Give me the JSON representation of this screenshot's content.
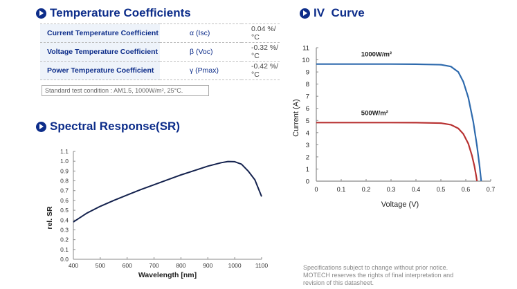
{
  "temperature_section": {
    "title": "Temperature Coefficients",
    "rows": [
      {
        "name": "Current Temperature Coefficient",
        "symbol": "α (Isc)",
        "value": "0.04 %/°C"
      },
      {
        "name": "Voltage Temperature Coefficient",
        "symbol": "β (Voc)",
        "value": "-0.32 %/°C"
      },
      {
        "name": "Power Temperature Coefficient",
        "symbol": "γ (Pmax)",
        "value": "-0.42 %/°C"
      }
    ],
    "standard_condition": "Standard test condition : AM1.5, 1000W/m², 25°C."
  },
  "spectral_section": {
    "title": "Spectral Response(SR)"
  },
  "iv_section": {
    "title": "IV  Curve"
  },
  "footnote": {
    "lines": [
      "Specifications subject to change without prior notice.",
      "MOTECH reserves the rights of final interpretation and",
      "revision of this datasheet."
    ]
  },
  "colors": {
    "brand": "#0d2d8a",
    "series_1000": "#2e6aad",
    "series_500": "#b83232",
    "sr_line": "#14224e"
  },
  "chart_data": [
    {
      "type": "line",
      "title": "Spectral Response(SR)",
      "xlabel": "Wavelength [nm]",
      "ylabel": "rel. SR",
      "xlim": [
        400,
        1100
      ],
      "ylim": [
        0.0,
        1.1
      ],
      "xticks": [
        "400",
        "500",
        "600",
        "700",
        "800",
        "900",
        "1000",
        "1100"
      ],
      "yticks": [
        "0.0",
        "0.1",
        "0.2",
        "0.3",
        "0.4",
        "0.5",
        "0.6",
        "0.7",
        "0.8",
        "0.9",
        "1.0",
        "1.1"
      ],
      "grid": false,
      "series": [
        {
          "name": "rel. SR",
          "x": [
            400,
            450,
            500,
            550,
            600,
            650,
            700,
            750,
            800,
            850,
            900,
            950,
            975,
            1000,
            1025,
            1050,
            1075,
            1100
          ],
          "y": [
            0.38,
            0.47,
            0.54,
            0.6,
            0.655,
            0.71,
            0.76,
            0.81,
            0.86,
            0.905,
            0.95,
            0.985,
            0.997,
            0.995,
            0.97,
            0.9,
            0.81,
            0.64
          ]
        }
      ]
    },
    {
      "type": "line",
      "title": "IV  Curve",
      "xlabel": "Voltage (V)",
      "ylabel": "Current (A)",
      "xlim": [
        0,
        0.7
      ],
      "ylim": [
        0,
        11
      ],
      "xticks": [
        "0",
        "0.1",
        "0.2",
        "0.3",
        "0.4",
        "0.5",
        "0.6",
        "0.7"
      ],
      "yticks": [
        "0",
        "1",
        "2",
        "3",
        "4",
        "5",
        "6",
        "7",
        "8",
        "9",
        "10",
        "11"
      ],
      "grid": false,
      "series": [
        {
          "name": "1000W/m²",
          "x": [
            0,
            0.1,
            0.2,
            0.3,
            0.4,
            0.5,
            0.54,
            0.57,
            0.59,
            0.61,
            0.63,
            0.645,
            0.655,
            0.662
          ],
          "y": [
            9.65,
            9.65,
            9.65,
            9.65,
            9.64,
            9.6,
            9.45,
            9.0,
            8.2,
            6.9,
            4.9,
            2.9,
            1.3,
            0
          ]
        },
        {
          "name": "500W/m²",
          "x": [
            0,
            0.1,
            0.2,
            0.3,
            0.4,
            0.5,
            0.54,
            0.57,
            0.59,
            0.61,
            0.625,
            0.635,
            0.642,
            0.645
          ],
          "y": [
            4.83,
            4.83,
            4.83,
            4.83,
            4.82,
            4.78,
            4.65,
            4.35,
            3.9,
            3.1,
            2.1,
            1.2,
            0.4,
            0
          ]
        }
      ]
    }
  ]
}
